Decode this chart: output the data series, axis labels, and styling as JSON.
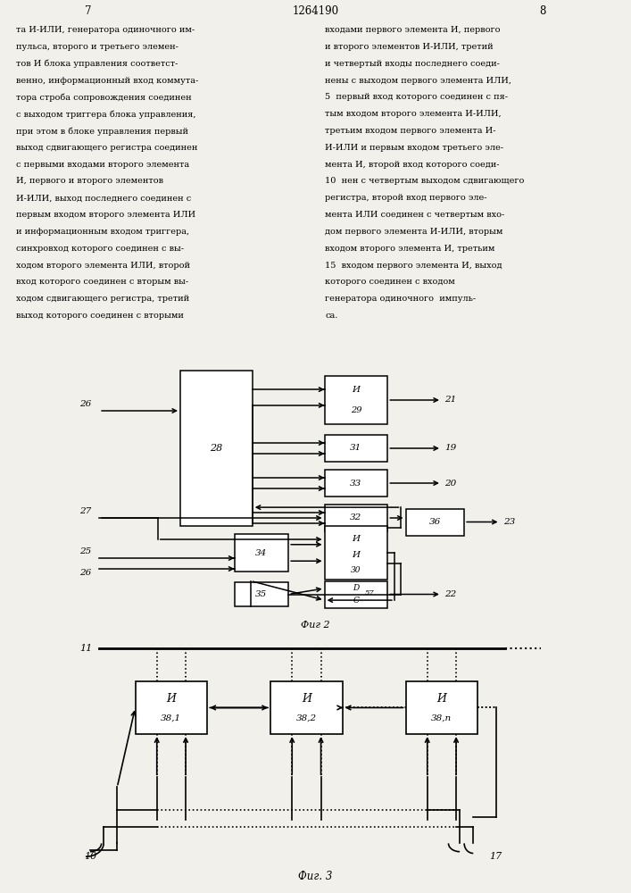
{
  "title": "1264190",
  "page_left": "7",
  "page_right": "8",
  "text_left": "та И-ИЛИ, генератора одиночного им-\nпульса, второго и третьего элемен-\nтов И блока управления соответст-\nвенно, информационный вход коммута-\nтора строба сопровождения соединен\nс выходом триггера блока управления,\nпри этом в блоке управления первый\nвыход сдвигающего регистра соединен\nс первыми входами второго элемента\nИ, первого и второго элементов\nИ-ИЛИ, выход последнего соединен с\nпервым входом второго элемента ИЛИ\nи информационным входом триггера,\nсинхровход которого соединен с вы-\nходом второго элемента ИЛИ, второй\nвход которого соединен с вторым вы-\nходом сдвигающего регистра, третий\nвыход которого соединен с вторыми",
  "text_right": "входами первого элемента И, первого\nи второго элементов И-ИЛИ, третий\nи четвертый входы последнего соеди-\nнены с выходом первого элемента ИЛИ,\n5  первый вход которого соединен с пя-\nтым входом второго элемента И-ИЛИ,\nтретьим входом первого элемента И-\nИ-ИЛИ и первым входом третьего эле-\nмента И, второй вход которого соеди-\n10  нен с четвертым выходом сдвигающего\nрегистра, второй вход первого эле-\nмента ИЛИ соединен с четвертым вхо-\nдом первого элемента И-ИЛИ, вторым\nвходом второго элемента И, третьим\n15  входом первого элемента И, выход\nкоторого соединен с входом\nгенератора одиночного  импуль-\nса.",
  "fig2_label": "Фиг 2",
  "fig3_label": "Фиг. 3",
  "bg": "#f2f0eb",
  "lw": 1.1
}
